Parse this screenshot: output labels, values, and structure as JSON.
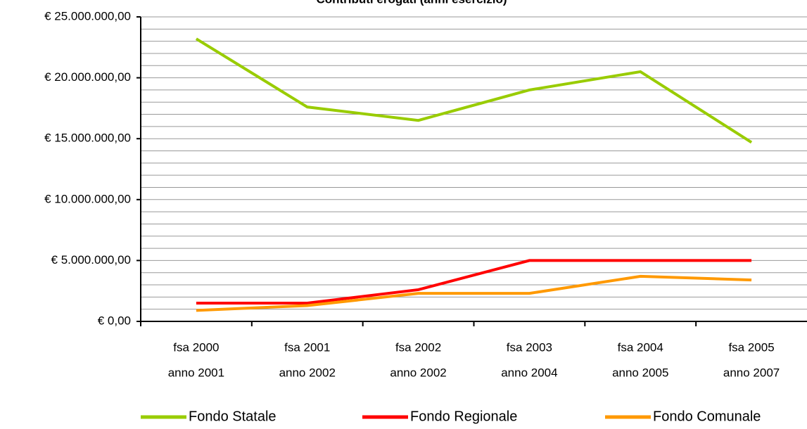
{
  "chart_data": {
    "type": "line",
    "title": "Contributi erogati (anni esercizio)",
    "categories": [
      [
        "fsa 2000",
        "anno 2001"
      ],
      [
        "fsa 2001",
        "anno 2002"
      ],
      [
        "fsa 2002",
        "anno 2002"
      ],
      [
        "fsa 2003",
        "anno 2004"
      ],
      [
        "fsa 2004",
        "anno 2005"
      ],
      [
        "fsa 2005",
        "anno 2007"
      ]
    ],
    "series": [
      {
        "name": "Fondo Statale",
        "color": "#99cc00",
        "values": [
          23200000,
          17600000,
          16500000,
          19000000,
          20500000,
          14700000
        ]
      },
      {
        "name": "Fondo Regionale",
        "color": "#ff0000",
        "values": [
          1500000,
          1500000,
          2600000,
          5000000,
          5000000,
          5000000
        ]
      },
      {
        "name": "Fondo Comunale",
        "color": "#ff9900",
        "values": [
          900000,
          1300000,
          2300000,
          2300000,
          3700000,
          3400000
        ]
      }
    ],
    "ylim": [
      0,
      25000000
    ],
    "yticks": [
      {
        "value": 0,
        "label": "€ 0,00"
      },
      {
        "value": 5000000,
        "label": "€ 5.000.000,00"
      },
      {
        "value": 10000000,
        "label": "€ 10.000.000,00"
      },
      {
        "value": 15000000,
        "label": "€ 15.000.000,00"
      },
      {
        "value": 20000000,
        "label": "€ 20.000.000,00"
      },
      {
        "value": 25000000,
        "label": "€ 25.000.000,00"
      }
    ],
    "y_minor_ticks": [
      1000000,
      2000000,
      3000000,
      4000000,
      6000000,
      7000000,
      8000000,
      9000000,
      11000000,
      12000000,
      13000000,
      14000000,
      16000000,
      17000000,
      18000000,
      19000000,
      21000000,
      22000000,
      23000000,
      24000000
    ],
    "grid": true,
    "legend": "bottom"
  }
}
